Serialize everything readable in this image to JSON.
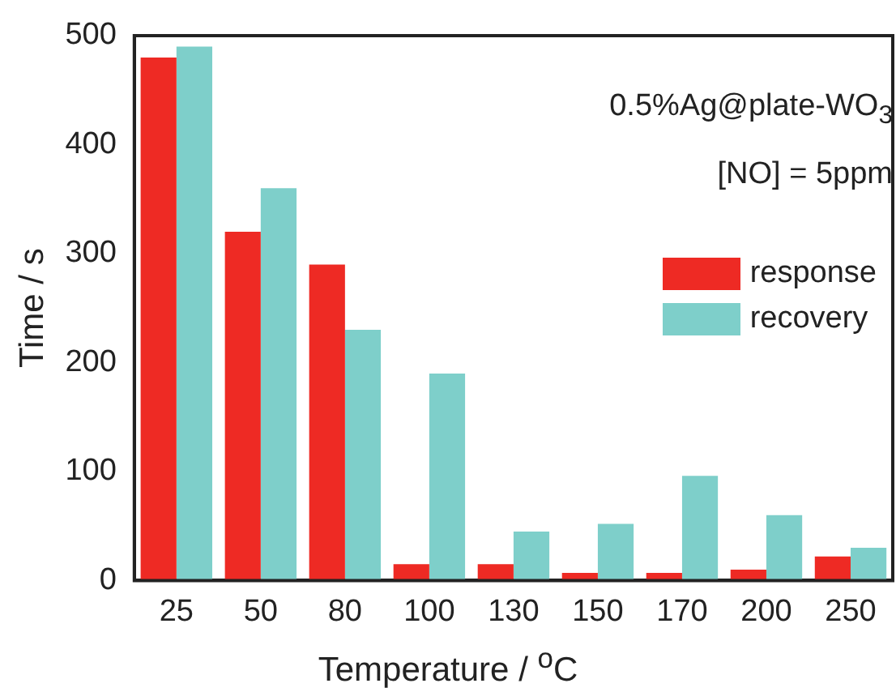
{
  "chart_data": {
    "type": "bar",
    "xlabel": "Temperature / $^{o}$C",
    "ylabel": "Time / s",
    "categories": [
      "25",
      "50",
      "80",
      "100",
      "130",
      "150",
      "170",
      "200",
      "250"
    ],
    "series": [
      {
        "name": "response",
        "color": "#ee2a24",
        "values": [
          480,
          320,
          290,
          15,
          15,
          7,
          7,
          10,
          22
        ]
      },
      {
        "name": "recovery",
        "color": "#7ecfca",
        "values": [
          490,
          360,
          230,
          190,
          45,
          52,
          96,
          60,
          30
        ]
      }
    ],
    "ylim": [
      0,
      500
    ],
    "yticks": [
      0,
      100,
      200,
      300,
      400,
      500
    ],
    "grid": false,
    "legend": "right",
    "annotations": [
      "0.5%Ag@plate-WO$_{3}$",
      "[NO] = 5ppm"
    ]
  }
}
